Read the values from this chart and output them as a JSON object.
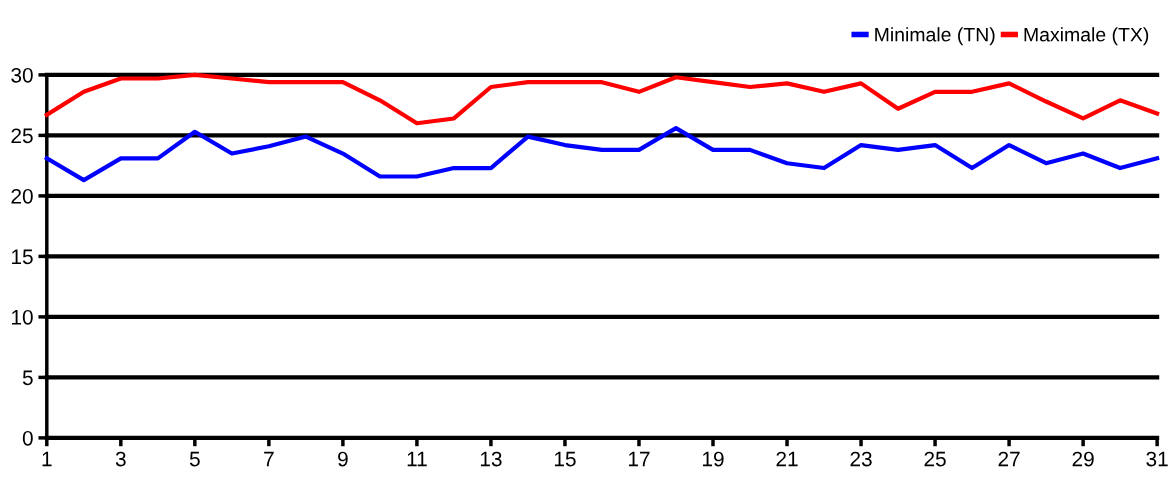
{
  "chart_data": {
    "type": "line",
    "x": [
      1,
      2,
      3,
      4,
      5,
      6,
      7,
      8,
      9,
      10,
      11,
      12,
      13,
      14,
      15,
      16,
      17,
      18,
      19,
      20,
      21,
      22,
      23,
      24,
      25,
      26,
      27,
      28,
      29,
      30,
      31
    ],
    "series": [
      {
        "name": "Minimale (TN)",
        "color": "#0000ff",
        "values": [
          23.1,
          21.3,
          23.1,
          23.1,
          25.3,
          23.5,
          24.1,
          24.9,
          23.5,
          21.6,
          21.6,
          22.3,
          22.3,
          24.9,
          24.2,
          23.8,
          23.8,
          25.6,
          23.8,
          23.8,
          22.7,
          22.3,
          24.2,
          23.8,
          24.2,
          22.3,
          24.2,
          22.7,
          23.5,
          22.3,
          23.1
        ]
      },
      {
        "name": "Maximale (TX)",
        "color": "#ff0000",
        "values": [
          26.7,
          28.6,
          29.7,
          29.7,
          30.0,
          29.7,
          29.4,
          29.4,
          29.4,
          27.9,
          26.0,
          26.4,
          29.0,
          29.4,
          29.4,
          29.4,
          28.6,
          29.8,
          29.4,
          29.0,
          29.3,
          28.6,
          29.3,
          27.2,
          28.6,
          28.6,
          29.3,
          27.8,
          26.4,
          27.9,
          26.8
        ]
      }
    ],
    "xlim": [
      1,
      31
    ],
    "xticks": [
      1,
      3,
      5,
      7,
      9,
      11,
      13,
      15,
      17,
      19,
      21,
      23,
      25,
      27,
      29,
      31
    ],
    "ylim": [
      0,
      30
    ],
    "yticks": [
      0,
      5,
      10,
      15,
      20,
      25,
      30
    ],
    "grid": "y",
    "legend": "top right",
    "marker": "none",
    "line_style": "solid"
  }
}
